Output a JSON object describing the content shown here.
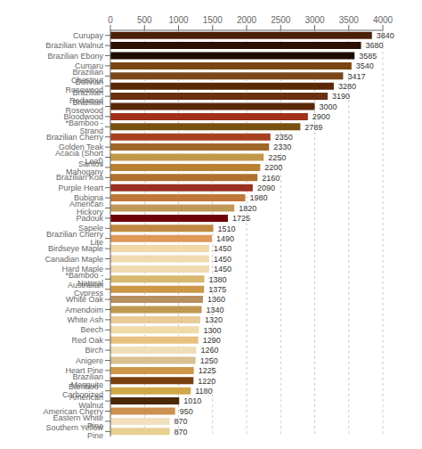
{
  "chart_data": {
    "type": "bar",
    "orientation": "horizontal",
    "categories": [
      "Curupay",
      "Brazilian Walnut",
      "Brazilian Ebony",
      "Cumaru",
      "Brazilian Chestnut",
      "Bolivian Rosewood",
      "Brazilian Redwood",
      "Brazilian Rosewood",
      "Bloodwood",
      "*Bamboo - Strand",
      "Brazilian Cherry",
      "Golden Teak",
      "Acacia (Short Leaf)",
      "Santos Mahogany",
      "Brazilian Koa",
      "Purple Heart",
      "Bubigna",
      "American Hickory",
      "Padouk",
      "Sapele",
      "Brazilian Cherry Lite",
      "Birdseye Maple",
      "Canadian Maple",
      "Hard Maple",
      "*Bamboo - Natural",
      "Australian Cypress",
      "White Oak",
      "Amendoim",
      "White Ash",
      "Beech",
      "Red Oak",
      "Birch",
      "Anigere",
      "Heart Pine",
      "Brazilian Mesquite",
      "Bamboo - Carbonized",
      "American Walnut",
      "American Cherry",
      "Eastern White Pine",
      "Southern Yellow Pine"
    ],
    "values": [
      3840,
      3680,
      3585,
      3540,
      3417,
      3280,
      3190,
      3000,
      2900,
      2789,
      2350,
      2330,
      2250,
      2200,
      2160,
      2090,
      1980,
      1820,
      1725,
      1510,
      1490,
      1450,
      1450,
      1450,
      1380,
      1375,
      1360,
      1340,
      1320,
      1300,
      1290,
      1260,
      1250,
      1225,
      1220,
      1180,
      1010,
      950,
      870,
      870
    ],
    "colors": [
      "#4a2008",
      "#2a1005",
      "#1e0c03",
      "#7a4510",
      "#7a4818",
      "#5a2808",
      "#6a3010",
      "#5a2808",
      "#a03018",
      "#7a5010",
      "#a84020",
      "#a06828",
      "#c09848",
      "#b88030",
      "#b07030",
      "#9a3020",
      "#c07838",
      "#c09858",
      "#700008",
      "#c08840",
      "#e09858",
      "#f0d8a8",
      "#f0dab0",
      "#f0dab0",
      "#d8b870",
      "#cc9848",
      "#b89060",
      "#c09850",
      "#e8cc98",
      "#f0daa8",
      "#e8c080",
      "#f0deb8",
      "#d8c090",
      "#cc9848",
      "#7a4010",
      "#d0a848",
      "#4a2808",
      "#cc9050",
      "#f0e0c0",
      "#e8d090"
    ],
    "xlim": [
      0,
      4000
    ],
    "xticks": [
      0,
      500,
      1000,
      1500,
      2000,
      2500,
      3000,
      3500,
      4000
    ],
    "grid": true,
    "data_labels": true
  }
}
